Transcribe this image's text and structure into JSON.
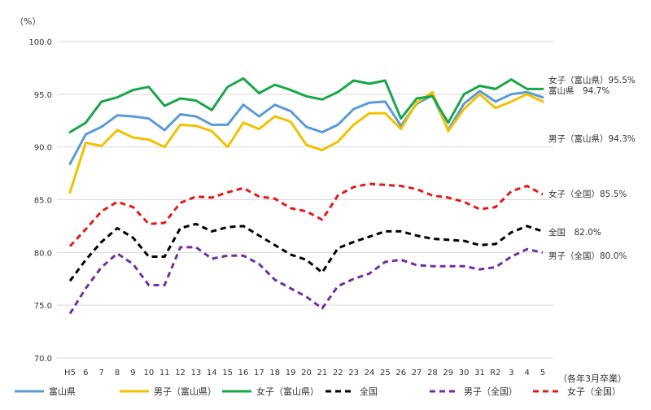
{
  "chart_data": {
    "type": "line",
    "unit_label": "（%）",
    "xlabel": "（各年3月卒業）",
    "ylim": [
      70,
      100
    ],
    "yticks": [
      "70.0",
      "75.0",
      "80.0",
      "85.0",
      "90.0",
      "95.0",
      "100.0"
    ],
    "categories": [
      "H5",
      "6",
      "7",
      "8",
      "9",
      "10",
      "11",
      "12",
      "13",
      "14",
      "15",
      "16",
      "17",
      "18",
      "19",
      "20",
      "21",
      "22",
      "23",
      "24",
      "25",
      "26",
      "27",
      "28",
      "29",
      "30",
      "31",
      "R2",
      "3",
      "4",
      "5"
    ],
    "grid": "horizontal",
    "legend_position": "bottom",
    "series": [
      {
        "name": "富山県",
        "color": "#5B9BD5",
        "dash": "solid",
        "end_label": "富山県　94.7%",
        "values": [
          88.4,
          91.2,
          91.9,
          93.0,
          92.9,
          92.7,
          91.6,
          93.1,
          92.9,
          92.1,
          92.1,
          94.0,
          92.9,
          94.0,
          93.4,
          91.9,
          91.4,
          92.1,
          93.6,
          94.2,
          94.3,
          92.0,
          94.1,
          94.9,
          91.6,
          94.1,
          95.3,
          94.3,
          95.0,
          95.2,
          94.7
        ]
      },
      {
        "name": "男子（富山県）",
        "color": "#F2C200",
        "dash": "solid",
        "end_label": "男子（富山県）94.3%",
        "values": [
          85.7,
          90.4,
          90.1,
          91.6,
          90.9,
          90.7,
          90.0,
          92.1,
          92.0,
          91.5,
          90.0,
          92.3,
          91.7,
          92.9,
          92.4,
          90.2,
          89.7,
          90.5,
          92.1,
          93.2,
          93.2,
          91.7,
          94.2,
          95.2,
          91.5,
          93.6,
          95.0,
          93.7,
          94.3,
          95.0,
          94.3
        ]
      },
      {
        "name": "女子（富山県）",
        "color": "#1AA64A",
        "dash": "solid",
        "end_label": "女子（富山県）95.5%",
        "values": [
          91.4,
          92.3,
          94.3,
          94.7,
          95.4,
          95.7,
          93.9,
          94.6,
          94.4,
          93.5,
          95.7,
          96.5,
          95.1,
          95.9,
          95.4,
          94.8,
          94.5,
          95.2,
          96.3,
          96.0,
          96.3,
          92.7,
          94.6,
          94.8,
          92.3,
          95.0,
          95.8,
          95.5,
          96.4,
          95.5,
          95.5
        ]
      },
      {
        "name": "全国",
        "color": "#000000",
        "dash": "dashed",
        "end_label": "全国　82.0%",
        "values": [
          77.3,
          79.3,
          81.0,
          82.3,
          81.4,
          79.6,
          79.6,
          82.3,
          82.7,
          82.0,
          82.4,
          82.5,
          81.6,
          80.7,
          79.8,
          79.3,
          78.1,
          80.4,
          81.0,
          81.5,
          82.0,
          82.0,
          81.6,
          81.3,
          81.2,
          81.1,
          80.7,
          80.8,
          81.9,
          82.5,
          82.0
        ]
      },
      {
        "name": "男子（全国）",
        "color": "#7030A0",
        "dash": "dashed",
        "end_label": "男子（全国）80.0%",
        "values": [
          74.2,
          76.6,
          78.6,
          79.9,
          78.9,
          76.9,
          76.9,
          80.5,
          80.5,
          79.4,
          79.7,
          79.7,
          78.9,
          77.4,
          76.6,
          75.8,
          74.7,
          76.8,
          77.5,
          78.0,
          79.1,
          79.3,
          78.8,
          78.7,
          78.7,
          78.7,
          78.4,
          78.6,
          79.6,
          80.3,
          80.0
        ]
      },
      {
        "name": "女子（全国）",
        "color": "#E31A1C",
        "dash": "dashed",
        "end_label": "女子（全国）85.5%",
        "values": [
          80.6,
          82.2,
          83.9,
          84.8,
          84.3,
          82.7,
          82.8,
          84.7,
          85.3,
          85.2,
          85.7,
          86.1,
          85.3,
          85.1,
          84.2,
          83.9,
          83.1,
          85.4,
          86.2,
          86.5,
          86.4,
          86.3,
          86.0,
          85.4,
          85.2,
          84.8,
          84.1,
          84.3,
          85.8,
          86.3,
          85.5
        ]
      }
    ]
  }
}
